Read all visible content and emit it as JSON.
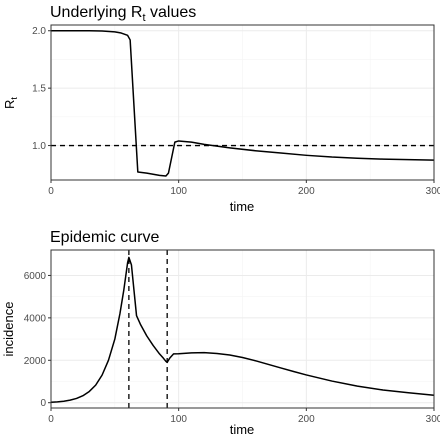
{
  "chart_data": [
    {
      "type": "line",
      "title_main": "Underlying R",
      "title_sub": "t",
      "title_tail": " values",
      "xlabel": "time",
      "ylabel_main": "R",
      "ylabel_sub": "t",
      "xlim": [
        0,
        300
      ],
      "ylim": [
        0.7,
        2.05
      ],
      "x_ticks": [
        0,
        100,
        200,
        300
      ],
      "y_ticks": [
        1.0,
        1.5,
        2.0
      ],
      "grid": true,
      "hline": 1.0,
      "x": [
        0,
        10,
        20,
        30,
        40,
        50,
        55,
        60,
        62,
        68,
        75,
        85,
        90,
        92,
        97,
        100,
        110,
        120,
        140,
        160,
        180,
        200,
        220,
        240,
        260,
        280,
        300
      ],
      "y": [
        2.0,
        2.0,
        2.0,
        2.0,
        1.998,
        1.99,
        1.98,
        1.96,
        1.92,
        0.77,
        0.76,
        0.74,
        0.735,
        0.76,
        1.03,
        1.04,
        1.03,
        1.01,
        0.98,
        0.955,
        0.935,
        0.915,
        0.9,
        0.89,
        0.882,
        0.877,
        0.873
      ]
    },
    {
      "type": "line",
      "title": "Epidemic curve",
      "xlabel": "time",
      "ylabel": "incidence",
      "xlim": [
        0,
        300
      ],
      "ylim": [
        -250,
        7200
      ],
      "x_ticks": [
        0,
        100,
        200,
        300
      ],
      "y_ticks": [
        0,
        2000,
        4000,
        6000
      ],
      "grid": true,
      "vlines": [
        61,
        91
      ],
      "x": [
        0,
        5,
        10,
        15,
        20,
        25,
        30,
        35,
        40,
        45,
        50,
        54,
        57,
        60,
        61,
        63,
        65,
        67,
        70,
        75,
        80,
        85,
        88,
        90,
        91,
        93,
        96,
        100,
        110,
        120,
        130,
        140,
        150,
        160,
        170,
        180,
        190,
        200,
        220,
        240,
        260,
        280,
        300
      ],
      "y": [
        20,
        40,
        70,
        120,
        200,
        330,
        530,
        830,
        1300,
        2000,
        3000,
        4200,
        5300,
        6600,
        6850,
        6500,
        5300,
        4100,
        3700,
        3150,
        2700,
        2300,
        2100,
        1950,
        1900,
        2100,
        2300,
        2310,
        2350,
        2360,
        2320,
        2250,
        2130,
        1980,
        1810,
        1640,
        1470,
        1310,
        1020,
        780,
        600,
        470,
        350
      ]
    }
  ]
}
